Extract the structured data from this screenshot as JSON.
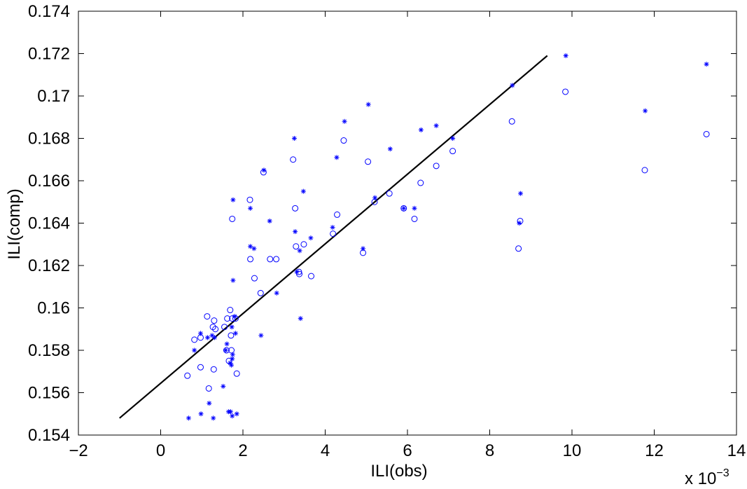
{
  "chart_data": {
    "type": "scatter",
    "title": "",
    "xlabel": "ILI(obs)",
    "ylabel": "ILI(comp)",
    "x_exponent_label": "x 10",
    "x_exponent_power": "−3",
    "xlim": [
      -2,
      14
    ],
    "ylim": [
      0.154,
      0.174
    ],
    "x_scale_multiplier": 0.001,
    "xticks": [
      -2,
      0,
      2,
      4,
      6,
      8,
      10,
      12,
      14
    ],
    "xtick_labels": [
      "−2",
      "0",
      "2",
      "4",
      "6",
      "8",
      "10",
      "12",
      "14"
    ],
    "yticks": [
      0.154,
      0.156,
      0.158,
      0.16,
      0.162,
      0.164,
      0.166,
      0.168,
      0.17,
      0.172,
      0.174
    ],
    "ytick_labels": [
      "0.154",
      "0.156",
      "0.158",
      "0.16",
      "0.162",
      "0.164",
      "0.166",
      "0.168",
      "0.17",
      "0.172",
      "0.174"
    ],
    "grid": false,
    "colors": {
      "markers": "#0000ff",
      "line": "#000000",
      "axes": "#000000"
    },
    "fit_line": {
      "x": [
        -1.0,
        9.4
      ],
      "y": [
        0.1548,
        0.1719
      ]
    },
    "series": [
      {
        "marker": "circle",
        "points": [
          [
            0.65,
            0.1568
          ],
          [
            0.82,
            0.1585
          ],
          [
            0.97,
            0.1586
          ],
          [
            0.97,
            0.1572
          ],
          [
            1.13,
            0.1596
          ],
          [
            1.17,
            0.1562
          ],
          [
            1.27,
            0.1591
          ],
          [
            1.29,
            0.1571
          ],
          [
            1.3,
            0.1594
          ],
          [
            1.33,
            0.159
          ],
          [
            1.55,
            0.1591
          ],
          [
            1.6,
            0.158
          ],
          [
            1.62,
            0.1595
          ],
          [
            1.66,
            0.1575
          ],
          [
            1.69,
            0.1599
          ],
          [
            1.71,
            0.1587
          ],
          [
            1.72,
            0.158
          ],
          [
            1.74,
            0.1595
          ],
          [
            1.74,
            0.1642
          ],
          [
            1.82,
            0.1595
          ],
          [
            1.85,
            0.1569
          ],
          [
            2.17,
            0.1651
          ],
          [
            2.18,
            0.1623
          ],
          [
            2.28,
            0.1614
          ],
          [
            2.43,
            0.1607
          ],
          [
            2.5,
            0.1664
          ],
          [
            2.66,
            0.1623
          ],
          [
            2.81,
            0.1623
          ],
          [
            3.22,
            0.167
          ],
          [
            3.27,
            0.1647
          ],
          [
            3.29,
            0.1629
          ],
          [
            3.36,
            0.1617
          ],
          [
            3.37,
            0.1616
          ],
          [
            3.48,
            0.163
          ],
          [
            3.66,
            0.1615
          ],
          [
            4.19,
            0.1635
          ],
          [
            4.29,
            0.1644
          ],
          [
            4.45,
            0.1679
          ],
          [
            4.92,
            0.1626
          ],
          [
            5.04,
            0.1669
          ],
          [
            5.2,
            0.165
          ],
          [
            5.56,
            0.1654
          ],
          [
            5.91,
            0.1647
          ],
          [
            6.17,
            0.1642
          ],
          [
            6.32,
            0.1659
          ],
          [
            6.7,
            0.1667
          ],
          [
            7.1,
            0.1674
          ],
          [
            8.54,
            0.1688
          ],
          [
            8.7,
            0.1628
          ],
          [
            8.74,
            0.1641
          ],
          [
            9.84,
            0.1702
          ],
          [
            11.77,
            0.1665
          ],
          [
            13.27,
            0.1682
          ]
        ]
      },
      {
        "marker": "asterisk",
        "points": [
          [
            0.68,
            0.1548
          ],
          [
            0.82,
            0.158
          ],
          [
            0.97,
            0.1588
          ],
          [
            0.98,
            0.155
          ],
          [
            1.14,
            0.1586
          ],
          [
            1.18,
            0.1555
          ],
          [
            1.25,
            0.1587
          ],
          [
            1.28,
            0.1548
          ],
          [
            1.31,
            0.1586
          ],
          [
            1.52,
            0.1563
          ],
          [
            1.58,
            0.158
          ],
          [
            1.61,
            0.1583
          ],
          [
            1.65,
            0.1551
          ],
          [
            1.69,
            0.1574
          ],
          [
            1.7,
            0.1551
          ],
          [
            1.72,
            0.1573
          ],
          [
            1.73,
            0.1591
          ],
          [
            1.74,
            0.1549
          ],
          [
            1.74,
            0.1576
          ],
          [
            1.75,
            0.1578
          ],
          [
            1.76,
            0.1651
          ],
          [
            1.76,
            0.1613
          ],
          [
            1.8,
            0.1596
          ],
          [
            1.82,
            0.1588
          ],
          [
            1.85,
            0.155
          ],
          [
            2.18,
            0.1629
          ],
          [
            2.18,
            0.1647
          ],
          [
            2.27,
            0.1628
          ],
          [
            2.44,
            0.1587
          ],
          [
            2.51,
            0.1665
          ],
          [
            2.65,
            0.1641
          ],
          [
            2.82,
            0.1607
          ],
          [
            3.25,
            0.168
          ],
          [
            3.27,
            0.1636
          ],
          [
            3.31,
            0.1617
          ],
          [
            3.38,
            0.1627
          ],
          [
            3.4,
            0.1595
          ],
          [
            3.47,
            0.1655
          ],
          [
            3.65,
            0.1633
          ],
          [
            4.18,
            0.1638
          ],
          [
            4.28,
            0.1671
          ],
          [
            4.47,
            0.1688
          ],
          [
            4.92,
            0.1628
          ],
          [
            5.05,
            0.1696
          ],
          [
            5.21,
            0.1652
          ],
          [
            5.58,
            0.1675
          ],
          [
            5.91,
            0.1647
          ],
          [
            6.17,
            0.1647
          ],
          [
            6.33,
            0.1684
          ],
          [
            6.7,
            0.1686
          ],
          [
            7.1,
            0.168
          ],
          [
            8.55,
            0.1705
          ],
          [
            8.72,
            0.164
          ],
          [
            8.75,
            0.1654
          ],
          [
            9.85,
            0.1719
          ],
          [
            11.78,
            0.1693
          ],
          [
            13.27,
            0.1715
          ]
        ]
      }
    ]
  }
}
